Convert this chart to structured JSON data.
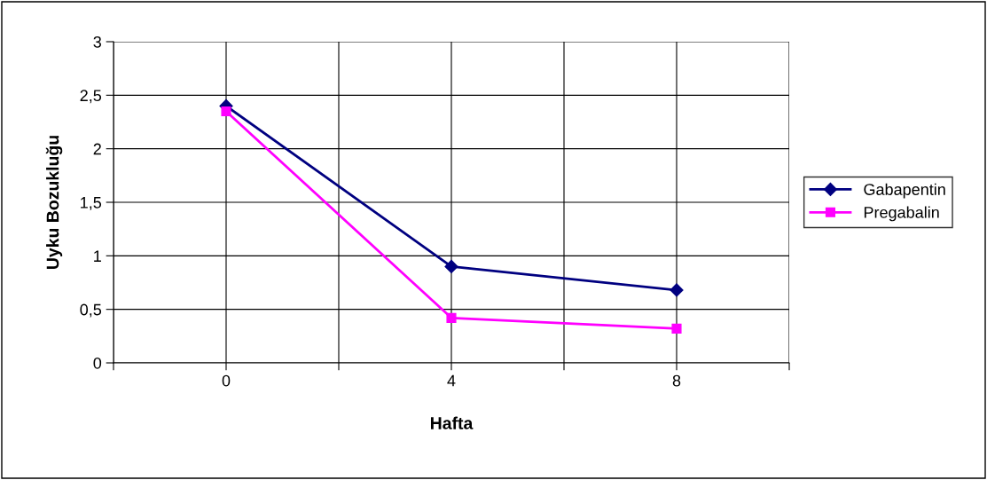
{
  "chart_data": {
    "type": "line",
    "xlabel": "Hafta",
    "ylabel": "Uyku Bozukluğu",
    "x": [
      0,
      4,
      8
    ],
    "series": [
      {
        "name": "Gabapentin",
        "color": "#000080",
        "values": [
          2.4,
          0.9,
          0.68
        ],
        "marker": "diamond"
      },
      {
        "name": "Pregabalin",
        "color": "#ff00ff",
        "values": [
          2.35,
          0.42,
          0.32
        ],
        "marker": "square"
      }
    ],
    "xlim": [
      -2,
      10
    ],
    "xticks": [
      {
        "value": -2,
        "label": null
      },
      0,
      {
        "value": 2,
        "label": null
      },
      4,
      {
        "value": 6,
        "label": null
      },
      8,
      {
        "value": 10,
        "label": null
      }
    ],
    "ylim": [
      0,
      3
    ],
    "yticks": [
      0,
      {
        "value": 0.5,
        "label": "0,5"
      },
      1,
      {
        "value": 1.5,
        "label": "1,5"
      },
      2,
      {
        "value": 2.5,
        "label": "2,5"
      },
      3
    ],
    "grid": true,
    "legend": "right",
    "line_style": "solid"
  }
}
